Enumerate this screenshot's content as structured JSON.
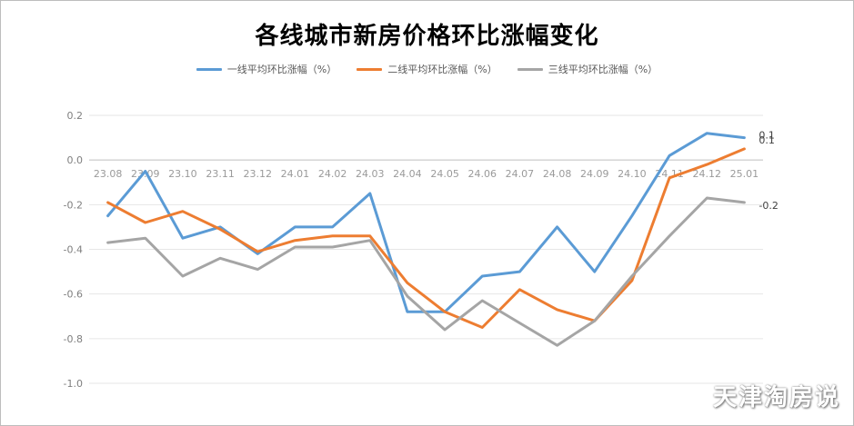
{
  "chart_data": {
    "type": "line",
    "title": "各线城市新房价格环比涨幅变化",
    "categories": [
      "23.08",
      "23.09",
      "23.10",
      "23.11",
      "23.12",
      "24.01",
      "24.02",
      "24.03",
      "24.04",
      "24.05",
      "24.06",
      "24.07",
      "24.08",
      "24.09",
      "24.10",
      "24.11",
      "24.12",
      "25.01"
    ],
    "series": [
      {
        "name": "一线平均环比涨幅（%）",
        "color": "#5b9bd5",
        "values": [
          -0.25,
          -0.05,
          -0.35,
          -0.3,
          -0.42,
          -0.3,
          -0.3,
          -0.15,
          -0.68,
          -0.68,
          -0.52,
          -0.5,
          -0.3,
          -0.5,
          -0.25,
          0.02,
          0.12,
          0.1
        ]
      },
      {
        "name": "二线平均环比涨幅（%）",
        "color": "#ed7d31",
        "values": [
          -0.19,
          -0.28,
          -0.23,
          -0.31,
          -0.41,
          -0.36,
          -0.34,
          -0.34,
          -0.55,
          -0.68,
          -0.75,
          -0.58,
          -0.67,
          -0.72,
          -0.54,
          -0.08,
          -0.02,
          0.05
        ]
      },
      {
        "name": "三线平均环比涨幅（%）",
        "color": "#a5a5a5",
        "values": [
          -0.37,
          -0.35,
          -0.52,
          -0.44,
          -0.49,
          -0.39,
          -0.39,
          -0.36,
          -0.61,
          -0.76,
          -0.63,
          -0.73,
          -0.83,
          -0.72,
          -0.52,
          -0.34,
          -0.17,
          -0.19
        ]
      }
    ],
    "end_labels": [
      "0.1",
      "0.1",
      "-0.2"
    ],
    "yticks": [
      "0.2",
      "0.0",
      "-0.2",
      "-0.4",
      "-0.6",
      "-0.8",
      "-1.0"
    ],
    "ylim": [
      -1.0,
      0.2
    ],
    "grid": true,
    "legend_position": "top"
  },
  "watermark": "天津淘房说"
}
